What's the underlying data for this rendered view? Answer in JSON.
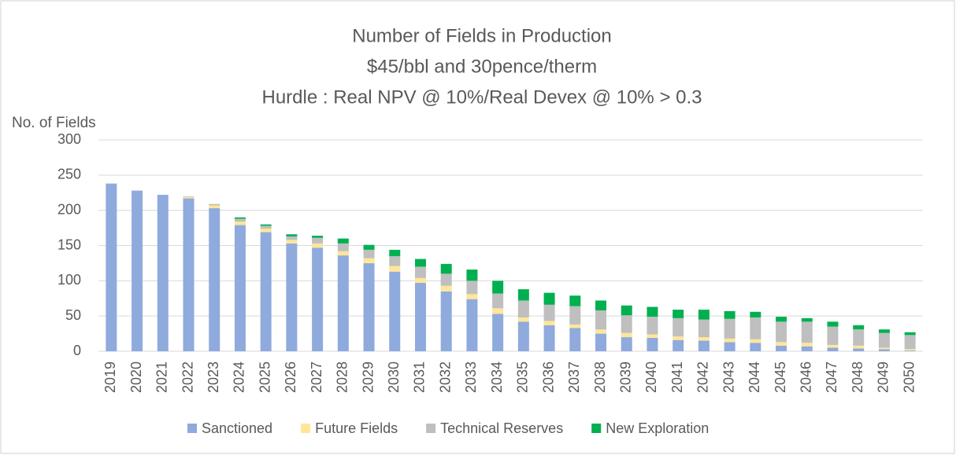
{
  "chart_data": {
    "type": "stacked_bar",
    "title": [
      "Number of Fields in Production",
      "$45/bbl and 30pence/therm",
      "Hurdle : Real NPV @ 10%/Real Devex @ 10% > 0.3"
    ],
    "y_label": "No. of Fields",
    "categories": [
      "2019",
      "2020",
      "2021",
      "2022",
      "2023",
      "2024",
      "2025",
      "2026",
      "2027",
      "2028",
      "2029",
      "2030",
      "2031",
      "2032",
      "2033",
      "2034",
      "2035",
      "2036",
      "2037",
      "2038",
      "2039",
      "2040",
      "2041",
      "2042",
      "2043",
      "2044",
      "2045",
      "2046",
      "2047",
      "2048",
      "2049",
      "2050"
    ],
    "series": [
      {
        "name": "Sanctioned",
        "color": "#8faadc",
        "values": [
          238,
          228,
          222,
          217,
          203,
          179,
          169,
          153,
          147,
          136,
          125,
          113,
          97,
          85,
          74,
          53,
          42,
          37,
          33,
          25,
          20,
          19,
          16,
          15,
          13,
          12,
          8,
          7,
          5,
          4,
          3,
          1
        ]
      },
      {
        "name": "Future Fields",
        "color": "#ffe699",
        "values": [
          0,
          0,
          0,
          2,
          4,
          5,
          5,
          5,
          6,
          6,
          7,
          8,
          7,
          8,
          7,
          8,
          6,
          6,
          5,
          6,
          6,
          5,
          5,
          5,
          5,
          5,
          5,
          5,
          4,
          4,
          2,
          2
        ]
      },
      {
        "name": "Technical Reserves",
        "color": "#bfbfbf",
        "values": [
          0,
          0,
          0,
          1,
          2,
          4,
          4,
          5,
          8,
          11,
          12,
          14,
          16,
          17,
          19,
          21,
          24,
          23,
          26,
          27,
          25,
          25,
          26,
          25,
          28,
          31,
          29,
          30,
          26,
          23,
          21,
          20
        ]
      },
      {
        "name": "New Exploration",
        "color": "#00b050",
        "values": [
          0,
          0,
          0,
          0,
          0,
          2,
          2,
          3,
          3,
          7,
          7,
          9,
          11,
          14,
          16,
          18,
          16,
          17,
          15,
          14,
          14,
          14,
          12,
          14,
          11,
          8,
          7,
          5,
          7,
          6,
          5,
          4
        ]
      }
    ],
    "ylim": [
      0,
      300
    ],
    "yticks": [
      0,
      50,
      100,
      150,
      200,
      250,
      300
    ],
    "grid": true,
    "legend": "bottom"
  }
}
